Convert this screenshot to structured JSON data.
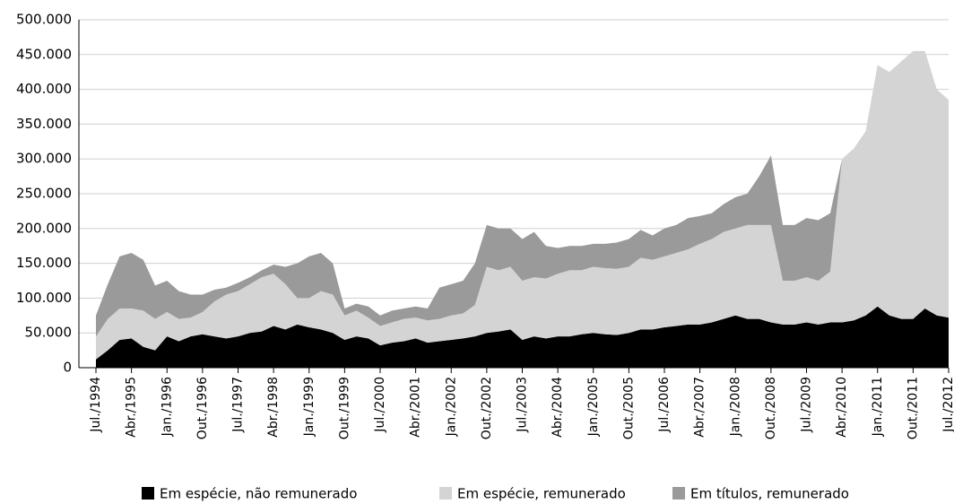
{
  "chart_data": {
    "type": "stacked_area",
    "categories": [
      "Jul./1994",
      null,
      null,
      "Abr./1995",
      null,
      null,
      "Jan./1996",
      null,
      null,
      "Out./1996",
      null,
      null,
      "Jul./1997",
      null,
      null,
      "Abr./1998",
      null,
      null,
      "Jan./1999",
      null,
      null,
      "Out./1999",
      null,
      null,
      "Jul./2000",
      null,
      null,
      "Abr./2001",
      null,
      null,
      "Jan./2002",
      null,
      null,
      "Out./2002",
      null,
      null,
      "Jul./2003",
      null,
      null,
      "Abr./2004",
      null,
      null,
      "Jan./2005",
      null,
      null,
      "Out./2005",
      null,
      null,
      "Jul./2006",
      null,
      null,
      "Abr./2007",
      null,
      null,
      "Jan./2008",
      null,
      null,
      "Out./2008",
      null,
      null,
      "Jul./2009",
      null,
      null,
      "Abr./2010",
      null,
      null,
      "Jan./2011",
      null,
      null,
      "Out./2011",
      null,
      null,
      "Jul./2012"
    ],
    "series": [
      {
        "name": "Em espécie, não remunerado",
        "color": "#000000",
        "values": [
          12000,
          25000,
          40000,
          42000,
          30000,
          25000,
          45000,
          38000,
          45000,
          48000,
          45000,
          42000,
          45000,
          50000,
          52000,
          60000,
          55000,
          62000,
          58000,
          55000,
          50000,
          40000,
          45000,
          42000,
          32000,
          36000,
          38000,
          42000,
          36000,
          38000,
          40000,
          42000,
          45000,
          50000,
          52000,
          55000,
          40000,
          45000,
          42000,
          45000,
          45000,
          48000,
          50000,
          48000,
          47000,
          50000,
          55000,
          55000,
          58000,
          60000,
          62000,
          62000,
          65000,
          70000,
          75000,
          70000,
          70000,
          65000,
          62000,
          62000,
          65000,
          62000,
          65000,
          65000,
          68000,
          75000,
          88000,
          75000,
          70000,
          70000,
          85000,
          75000,
          72000
        ]
      },
      {
        "name": "Em espécie, remunerado",
        "color": "#d4d4d4",
        "values": [
          33000,
          45000,
          45000,
          43000,
          52000,
          45000,
          35000,
          32000,
          27000,
          32000,
          50000,
          63000,
          65000,
          70000,
          78000,
          75000,
          65000,
          38000,
          42000,
          55000,
          55000,
          35000,
          37000,
          30000,
          28000,
          29000,
          32000,
          30000,
          32000,
          32000,
          35000,
          36000,
          45000,
          95000,
          88000,
          90000,
          85000,
          85000,
          86000,
          90000,
          95000,
          92000,
          95000,
          95000,
          95000,
          95000,
          103000,
          100000,
          102000,
          105000,
          108000,
          116000,
          120000,
          125000,
          125000,
          135000,
          135000,
          140000,
          63000,
          63000,
          65000,
          63000,
          73000,
          235000,
          247000,
          265000,
          347000,
          350000,
          370000,
          385000,
          370000,
          325000,
          313000
        ]
      },
      {
        "name": "Em títulos, remunerado",
        "color": "#9a9a9a",
        "values": [
          30000,
          50000,
          75000,
          80000,
          73000,
          48000,
          45000,
          40000,
          33000,
          25000,
          17000,
          10000,
          12000,
          10000,
          10000,
          13000,
          25000,
          50000,
          60000,
          55000,
          45000,
          10000,
          10000,
          16000,
          15000,
          17000,
          15000,
          16000,
          17000,
          45000,
          45000,
          47000,
          60000,
          60000,
          60000,
          55000,
          60000,
          65000,
          47000,
          37000,
          35000,
          35000,
          33000,
          35000,
          38000,
          40000,
          40000,
          35000,
          40000,
          40000,
          45000,
          40000,
          37000,
          40000,
          45000,
          45000,
          70000,
          100000,
          80000,
          80000,
          85000,
          87000,
          84000,
          0,
          0,
          0,
          0,
          0,
          0,
          0,
          0,
          0,
          0
        ]
      }
    ],
    "ylim": [
      0,
      500000
    ],
    "yticks": [
      0,
      {
        "value": 50000,
        "label": "50.000"
      },
      {
        "value": 100000,
        "label": "100.000"
      },
      {
        "value": 150000,
        "label": "150.000"
      },
      {
        "value": 200000,
        "label": "200.000"
      },
      {
        "value": 250000,
        "label": "250.000"
      },
      {
        "value": 300000,
        "label": "300.000"
      },
      {
        "value": 350000,
        "label": "350.000"
      },
      {
        "value": 400000,
        "label": "400.000"
      },
      {
        "value": 450000,
        "label": "450.000"
      },
      {
        "value": 500000,
        "label": "500.000"
      }
    ],
    "grid": true,
    "legend": "bottom"
  }
}
